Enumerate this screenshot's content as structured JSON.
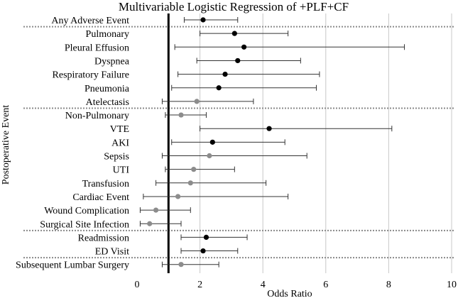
{
  "chart_data": {
    "type": "forest",
    "title": "Multivariable Logistic Regression of +PLF+CF",
    "xlabel": "Odds Ratio",
    "ylabel": "Postoperative Event",
    "xlim": [
      0,
      10
    ],
    "xticks": [
      0,
      2,
      4,
      6,
      8,
      10
    ],
    "reference_line": 1,
    "significant_color": "#000000",
    "nonsignificant_color": "#8c8c8c",
    "rows": [
      {
        "label": "Any Adverse Event",
        "or": 2.1,
        "lo": 1.5,
        "hi": 3.2,
        "significant": true
      },
      {
        "label": "Pulmonary",
        "or": 3.1,
        "lo": 2.0,
        "hi": 4.8,
        "significant": true
      },
      {
        "label": "Pleural Effusion",
        "or": 3.4,
        "lo": 1.2,
        "hi": 8.5,
        "significant": true
      },
      {
        "label": "Dyspnea",
        "or": 3.2,
        "lo": 1.9,
        "hi": 5.2,
        "significant": true
      },
      {
        "label": "Respiratory Failure",
        "or": 2.8,
        "lo": 1.3,
        "hi": 5.8,
        "significant": true
      },
      {
        "label": "Pneumonia",
        "or": 2.6,
        "lo": 1.1,
        "hi": 5.7,
        "significant": true
      },
      {
        "label": "Atelectasis",
        "or": 1.9,
        "lo": 0.8,
        "hi": 3.7,
        "significant": false
      },
      {
        "label": "Non-Pulmonary",
        "or": 1.4,
        "lo": 0.9,
        "hi": 2.2,
        "significant": false
      },
      {
        "label": "VTE",
        "or": 4.2,
        "lo": 2.0,
        "hi": 8.1,
        "significant": true
      },
      {
        "label": "AKI",
        "or": 2.4,
        "lo": 1.1,
        "hi": 4.7,
        "significant": true
      },
      {
        "label": "Sepsis",
        "or": 2.3,
        "lo": 0.8,
        "hi": 5.4,
        "significant": false
      },
      {
        "label": "UTI",
        "or": 1.8,
        "lo": 0.9,
        "hi": 3.1,
        "significant": false
      },
      {
        "label": "Transfusion",
        "or": 1.7,
        "lo": 0.6,
        "hi": 4.1,
        "significant": false
      },
      {
        "label": "Cardiac Event",
        "or": 1.3,
        "lo": 0.2,
        "hi": 4.8,
        "significant": false
      },
      {
        "label": "Wound Complication",
        "or": 0.6,
        "lo": 0.1,
        "hi": 1.7,
        "significant": false
      },
      {
        "label": "Surgical Site Infection",
        "or": 0.4,
        "lo": 0.1,
        "hi": 1.4,
        "significant": false
      },
      {
        "label": "Readmission",
        "or": 2.2,
        "lo": 1.4,
        "hi": 3.5,
        "significant": true
      },
      {
        "label": "ED Visit",
        "or": 2.1,
        "lo": 1.4,
        "hi": 3.2,
        "significant": true
      },
      {
        "label": "Subsequent Lumbar Surgery",
        "or": 1.4,
        "lo": 0.8,
        "hi": 2.6,
        "significant": false
      }
    ],
    "group_separators_after_index": [
      0,
      6,
      15,
      17
    ]
  }
}
